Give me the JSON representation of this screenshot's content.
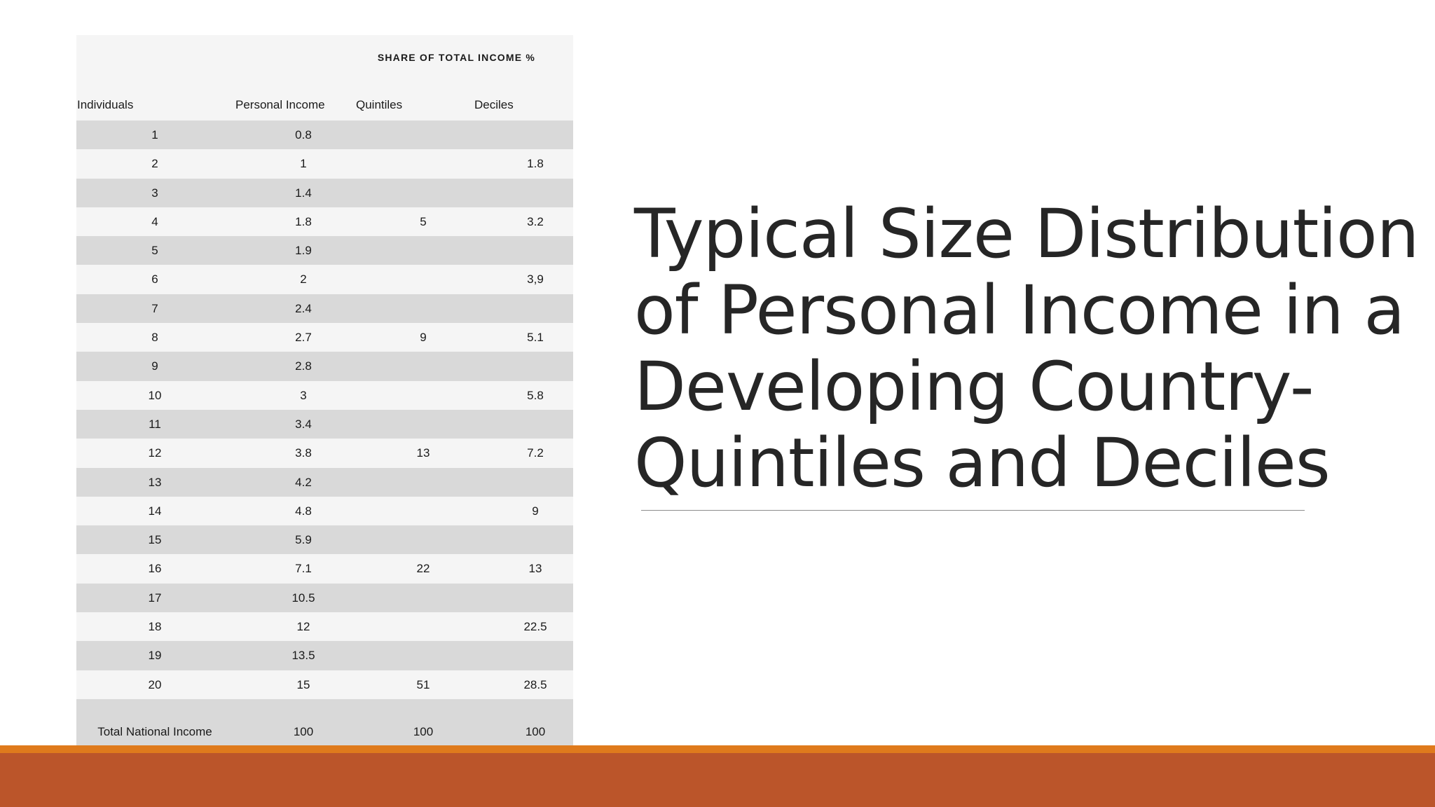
{
  "table": {
    "group_header": "SHARE OF TOTAL INCOME %",
    "columns": [
      "Individuals",
      "Personal Income",
      "Quintiles",
      "Deciles"
    ],
    "rows": [
      [
        "1",
        "0.8",
        "",
        ""
      ],
      [
        "2",
        "1",
        "",
        "1.8"
      ],
      [
        "3",
        "1.4",
        "",
        ""
      ],
      [
        "4",
        "1.8",
        "5",
        "3.2"
      ],
      [
        "5",
        "1.9",
        "",
        ""
      ],
      [
        "6",
        "2",
        "",
        "3,9"
      ],
      [
        "7",
        "2.4",
        "",
        ""
      ],
      [
        "8",
        "2.7",
        "9",
        "5.1"
      ],
      [
        "9",
        "2.8",
        "",
        ""
      ],
      [
        "10",
        "3",
        "",
        "5.8"
      ],
      [
        "11",
        "3.4",
        "",
        ""
      ],
      [
        "12",
        "3.8",
        "13",
        "7.2"
      ],
      [
        "13",
        "4.2",
        "",
        ""
      ],
      [
        "14",
        "4.8",
        "",
        "9"
      ],
      [
        "15",
        "5.9",
        "",
        ""
      ],
      [
        "16",
        "7.1",
        "22",
        "13"
      ],
      [
        "17",
        "10.5",
        "",
        ""
      ],
      [
        "18",
        "12",
        "",
        "22.5"
      ],
      [
        "19",
        "13.5",
        "",
        ""
      ],
      [
        "20",
        "15",
        "51",
        "28.5"
      ]
    ],
    "total": [
      "Total National Income",
      "100",
      "100",
      "100"
    ]
  },
  "slide": {
    "title": "Typical Size Distribution\nof Personal Income in a\nDeveloping Country-\nQuintiles and Deciles"
  },
  "colors": {
    "row_dark": "#d9d9d9",
    "row_light": "#f5f5f5",
    "footer_stripe": "#df7a1c",
    "footer_band": "#bb552a"
  }
}
